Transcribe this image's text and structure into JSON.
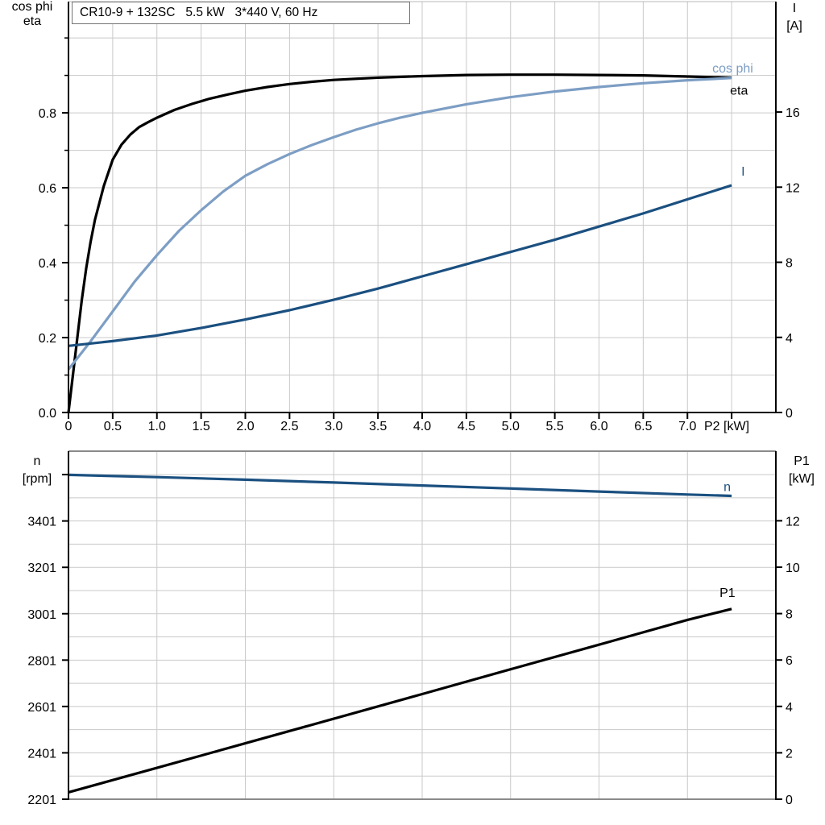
{
  "title_box": {
    "text": "CR10-9 + 132SC   5.5 kW   3*440 V, 60 Hz"
  },
  "colors": {
    "background": "#ffffff",
    "grid": "#c9c9c9",
    "axis": "#000000",
    "frame_muted": "#8a8a8a",
    "frame_top": "#b8b8b8",
    "cos_phi_curve": "#7d9ec4",
    "eta_curve": "#000000",
    "current_curve": "#1b5080",
    "speed_curve": "#1b5080",
    "p1_curve": "#000000"
  },
  "chart_data": [
    {
      "type": "line",
      "title": "CR10-9 + 132SC   5.5 kW   3*440 V, 60 Hz",
      "x_axis": {
        "label": "P2 [kW]",
        "min": 0,
        "max": 8,
        "grid_step": 0.5,
        "ticks": [
          0,
          0.5,
          1,
          1.5,
          2,
          2.5,
          3,
          3.5,
          4,
          4.5,
          5,
          5.5,
          6,
          6.5,
          7,
          7.5
        ],
        "tick_labels": [
          "0",
          "0.5",
          "1.0",
          "1.5",
          "2.0",
          "2.5",
          "3.0",
          "3.5",
          "4.0",
          "4.5",
          "5.0",
          "5.5",
          "6.0",
          "6.5",
          "7.0",
          ""
        ]
      },
      "left_axis": {
        "title_lines": [
          "cos phi",
          "eta"
        ],
        "min": 0,
        "max": 1.097,
        "grid_step": 0.1,
        "minor_tick_step": 0.1,
        "ticks": [
          0,
          0.2,
          0.4,
          0.6,
          0.8
        ],
        "tick_labels": [
          "0.0",
          "0.2",
          "0.4",
          "0.6",
          "0.8"
        ]
      },
      "right_axis": {
        "title_lines": [
          "I",
          "[A]"
        ],
        "min": 0,
        "max": 21.88,
        "ticks": [
          0,
          4,
          8,
          12,
          16
        ],
        "tick_labels": [
          "0",
          "4",
          "8",
          "12",
          "16"
        ]
      },
      "series": [
        {
          "id": "eta",
          "label": "eta",
          "axis": "left",
          "color": "#000000",
          "points": [
            [
              0,
              0
            ],
            [
              0.05,
              0.1
            ],
            [
              0.1,
              0.2
            ],
            [
              0.15,
              0.3
            ],
            [
              0.2,
              0.385
            ],
            [
              0.25,
              0.455
            ],
            [
              0.3,
              0.515
            ],
            [
              0.4,
              0.605
            ],
            [
              0.5,
              0.675
            ],
            [
              0.6,
              0.715
            ],
            [
              0.7,
              0.742
            ],
            [
              0.8,
              0.762
            ],
            [
              0.9,
              0.775
            ],
            [
              1.0,
              0.787
            ],
            [
              1.2,
              0.808
            ],
            [
              1.4,
              0.824
            ],
            [
              1.6,
              0.838
            ],
            [
              1.8,
              0.849
            ],
            [
              2.0,
              0.859
            ],
            [
              2.25,
              0.869
            ],
            [
              2.5,
              0.877
            ],
            [
              2.75,
              0.883
            ],
            [
              3.0,
              0.888
            ],
            [
              3.5,
              0.894
            ],
            [
              4.0,
              0.898
            ],
            [
              4.5,
              0.901
            ],
            [
              5.0,
              0.902
            ],
            [
              5.5,
              0.902
            ],
            [
              6.0,
              0.901
            ],
            [
              6.5,
              0.9
            ],
            [
              7.0,
              0.897
            ],
            [
              7.5,
              0.894
            ]
          ]
        },
        {
          "id": "cos-phi",
          "label": "cos phi",
          "axis": "left",
          "color": "#7d9ec4",
          "points": [
            [
              0,
              0.115
            ],
            [
              0.25,
              0.19
            ],
            [
              0.5,
              0.27
            ],
            [
              0.75,
              0.35
            ],
            [
              1.0,
              0.42
            ],
            [
              1.25,
              0.485
            ],
            [
              1.5,
              0.54
            ],
            [
              1.75,
              0.59
            ],
            [
              2.0,
              0.632
            ],
            [
              2.25,
              0.663
            ],
            [
              2.5,
              0.69
            ],
            [
              2.75,
              0.714
            ],
            [
              3.0,
              0.735
            ],
            [
              3.25,
              0.755
            ],
            [
              3.5,
              0.772
            ],
            [
              3.75,
              0.787
            ],
            [
              4.0,
              0.8
            ],
            [
              4.5,
              0.823
            ],
            [
              5.0,
              0.842
            ],
            [
              5.5,
              0.857
            ],
            [
              6.0,
              0.869
            ],
            [
              6.5,
              0.879
            ],
            [
              7.0,
              0.887
            ],
            [
              7.5,
              0.893
            ]
          ]
        },
        {
          "id": "current",
          "label": "I",
          "axis": "right",
          "color": "#1b5080",
          "points": [
            [
              0,
              3.55
            ],
            [
              0.5,
              3.8
            ],
            [
              1.0,
              4.1
            ],
            [
              1.5,
              4.5
            ],
            [
              2.0,
              4.95
            ],
            [
              2.5,
              5.45
            ],
            [
              3.0,
              6.0
            ],
            [
              3.5,
              6.6
            ],
            [
              4.0,
              7.25
            ],
            [
              4.5,
              7.9
            ],
            [
              5.0,
              8.55
            ],
            [
              5.5,
              9.2
            ],
            [
              6.0,
              9.9
            ],
            [
              6.5,
              10.6
            ],
            [
              7.0,
              11.35
            ],
            [
              7.5,
              12.1
            ]
          ]
        }
      ]
    },
    {
      "type": "line",
      "title": "",
      "x_axis": {
        "label": "",
        "min": 0,
        "max": 8,
        "grid_step": 1,
        "ticks": [],
        "tick_labels": []
      },
      "left_axis": {
        "title_lines": [
          "n",
          "[rpm]"
        ],
        "min": 2201,
        "max": 3702,
        "grid_step": 100,
        "ticks": [
          2201,
          2401,
          2601,
          2801,
          3001,
          3201,
          3401,
          3601
        ],
        "tick_labels": [
          "2201",
          "2401",
          "2601",
          "2801",
          "3001",
          "3201",
          "3401",
          ""
        ]
      },
      "right_axis": {
        "title_lines": [
          "P1",
          "[kW]"
        ],
        "min": 0,
        "max": 15.0,
        "ticks": [
          0,
          2,
          4,
          6,
          8,
          10,
          12
        ],
        "tick_labels": [
          "0",
          "2",
          "4",
          "6",
          "8",
          "10",
          "12"
        ]
      },
      "series": [
        {
          "id": "p1",
          "label": "P1",
          "axis": "right",
          "color": "#000000",
          "points": [
            [
              0,
              0.3
            ],
            [
              1,
              1.35
            ],
            [
              2,
              2.41
            ],
            [
              3,
              3.47
            ],
            [
              4,
              4.53
            ],
            [
              5,
              5.6
            ],
            [
              6,
              6.66
            ],
            [
              7,
              7.73
            ],
            [
              7.5,
              8.2
            ]
          ]
        },
        {
          "id": "n",
          "label": "n",
          "axis": "left",
          "color": "#1b5080",
          "points": [
            [
              0,
              3600
            ],
            [
              1,
              3590
            ],
            [
              2,
              3579
            ],
            [
              3,
              3567
            ],
            [
              4,
              3554
            ],
            [
              5,
              3541
            ],
            [
              6,
              3528
            ],
            [
              7,
              3515
            ],
            [
              7.5,
              3509
            ]
          ]
        }
      ]
    }
  ]
}
